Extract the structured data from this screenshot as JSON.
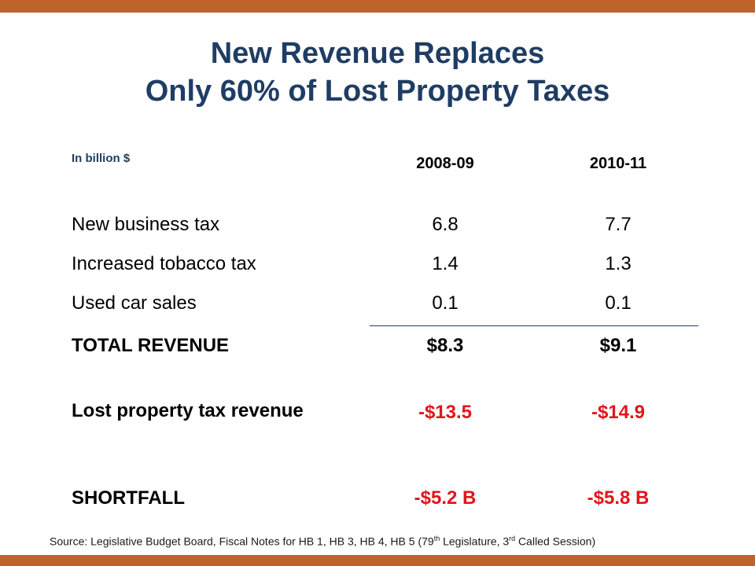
{
  "colors": {
    "accent_bar": "#c0622b",
    "title": "#1f3d64",
    "negative": "#e3141b"
  },
  "title": {
    "line1": "New Revenue Replaces",
    "line2": "Only 60% of Lost Property Taxes"
  },
  "table": {
    "unit_label": "In billion $",
    "columns": [
      "2008-09",
      "2010-11"
    ],
    "rows": [
      {
        "label": "New business tax",
        "values": [
          "6.8",
          "7.7"
        ]
      },
      {
        "label": "Increased tobacco tax",
        "values": [
          "1.4",
          "1.3"
        ]
      },
      {
        "label": "Used car sales",
        "values": [
          "0.1",
          "0.1"
        ]
      },
      {
        "label": "TOTAL REVENUE",
        "values": [
          "$8.3",
          "$9.1"
        ]
      },
      {
        "label": "Lost property tax revenue",
        "values": [
          "-$13.5",
          "-$14.9"
        ]
      },
      {
        "label": "SHORTFALL",
        "values": [
          "-$5.2 B",
          "-$5.8 B"
        ]
      }
    ]
  },
  "source": {
    "text_a": "Source:  Legislative Budget Board, Fiscal Notes for HB 1, HB 3, HB 4, HB 5 (79",
    "sup_a": "th",
    "text_b": " Legislature, 3",
    "sup_b": "rd",
    "text_c": " Called Session)"
  }
}
